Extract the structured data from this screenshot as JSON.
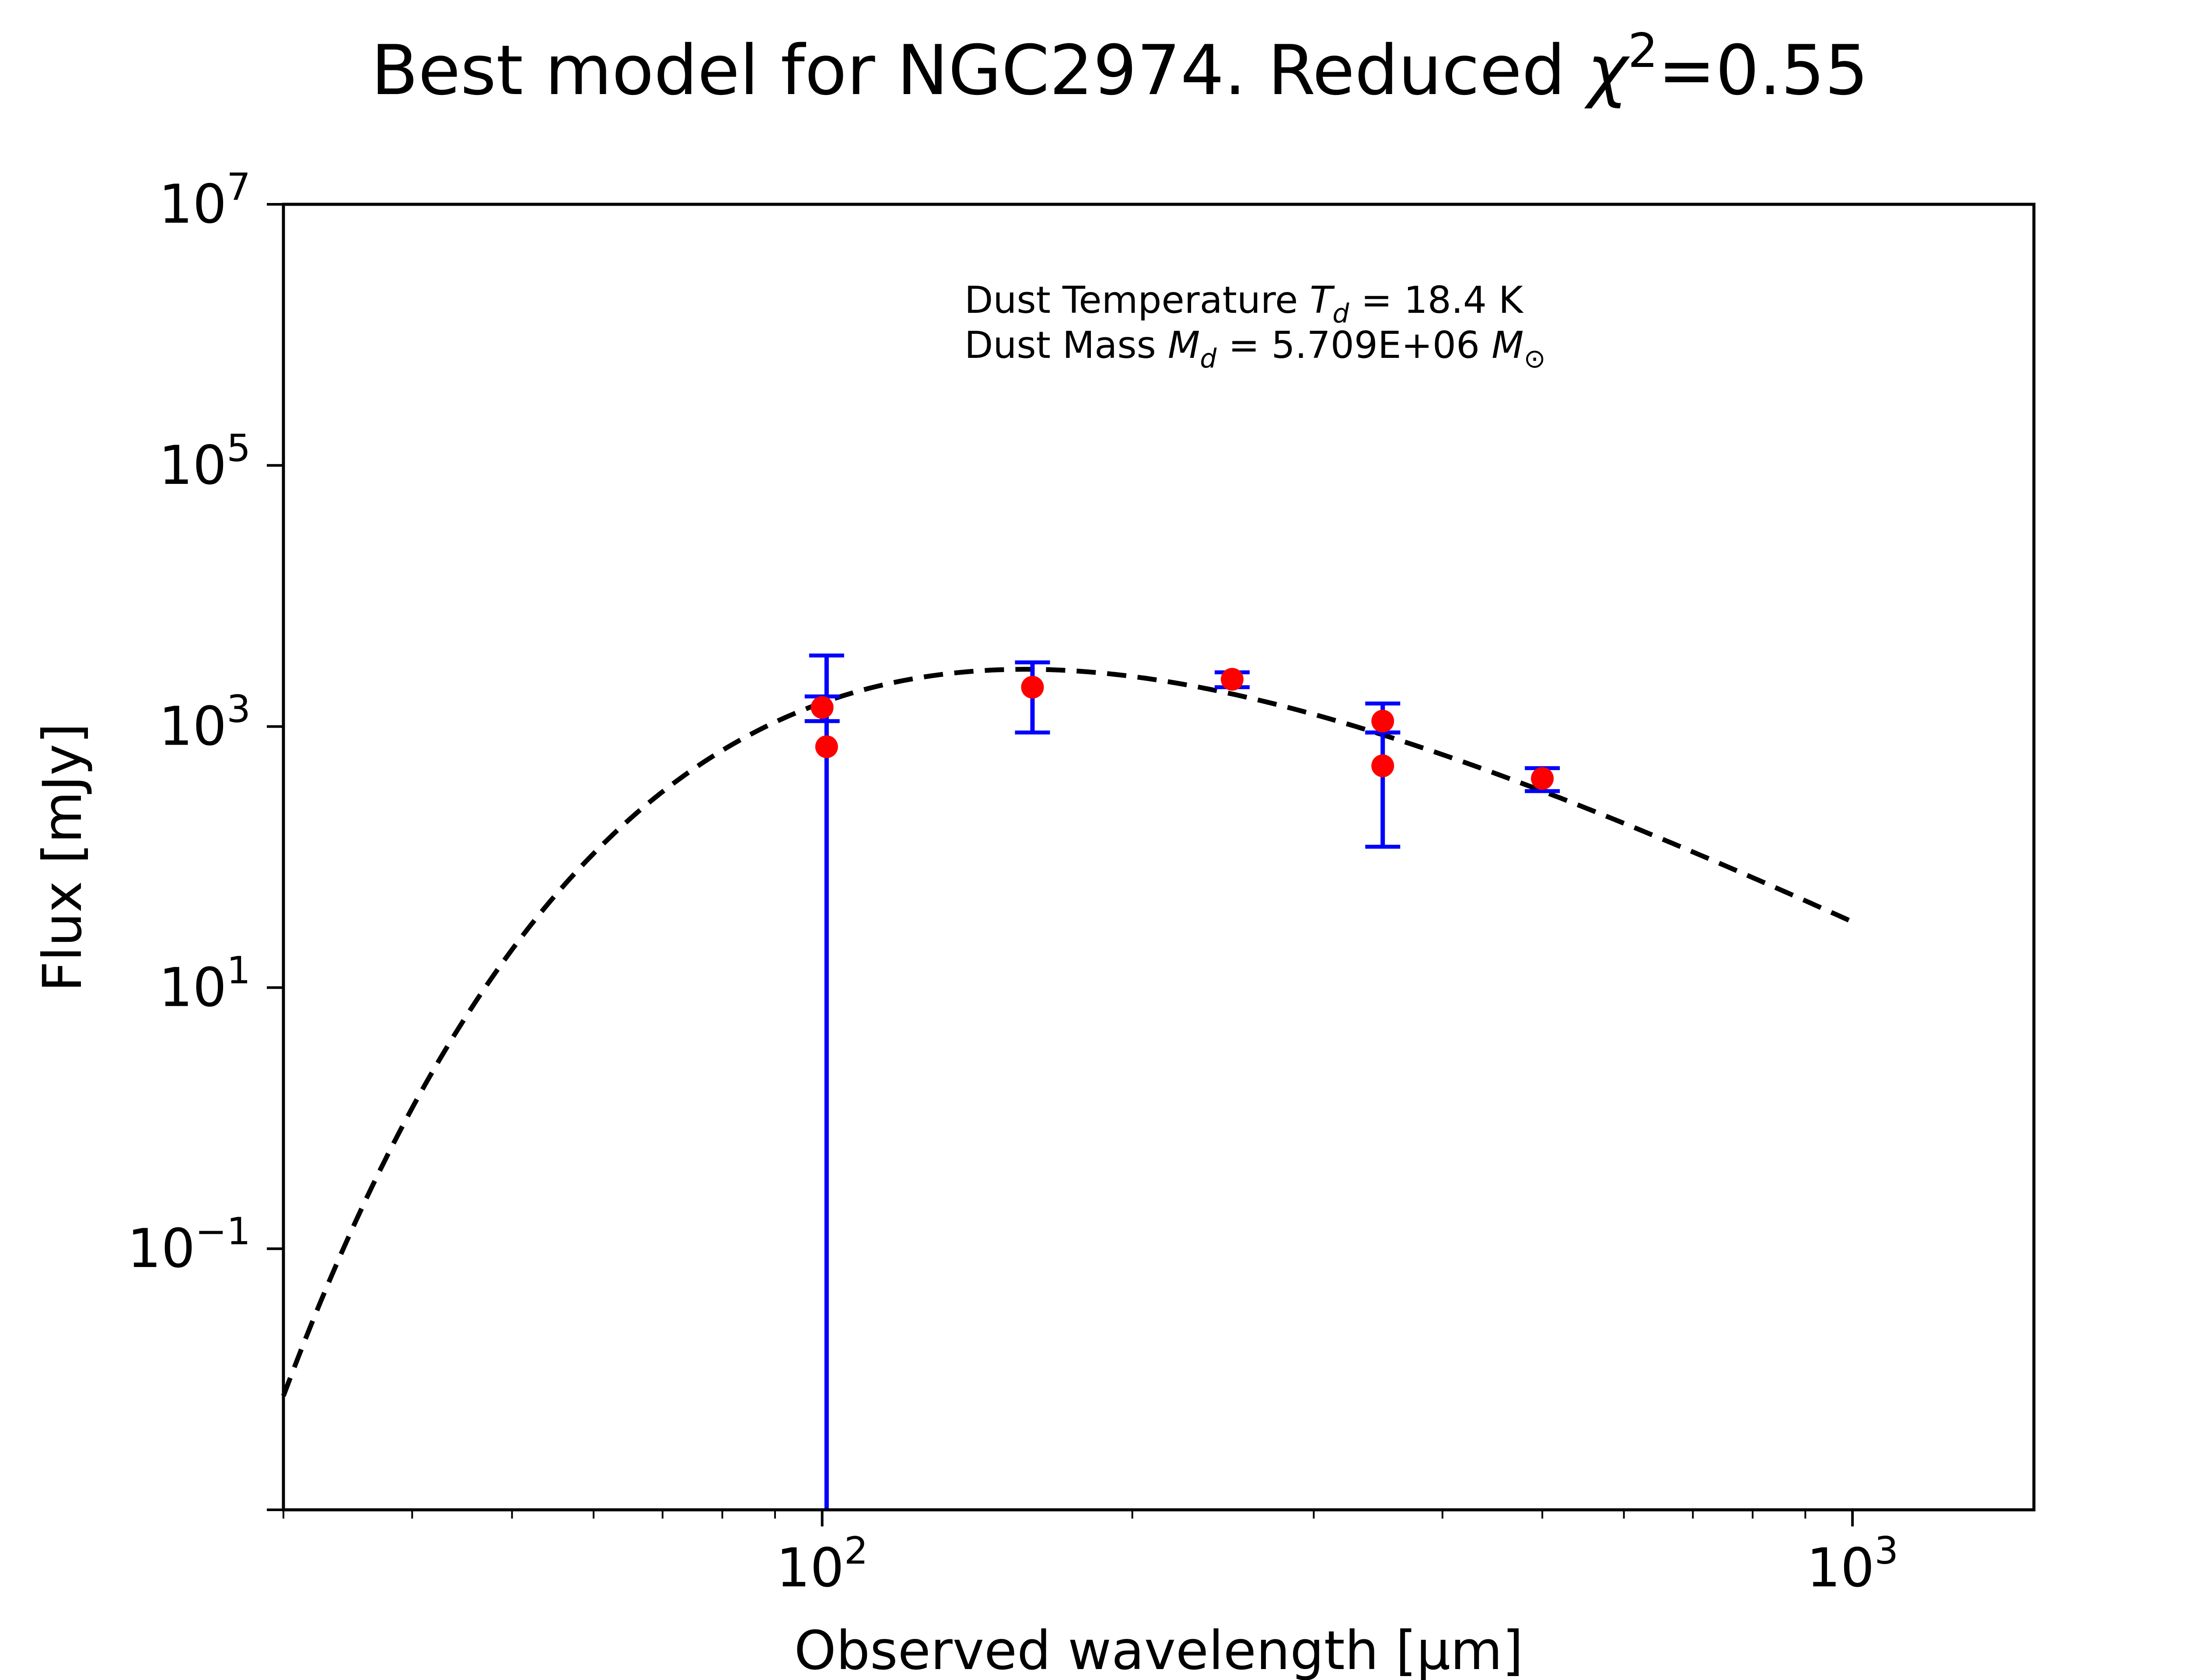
{
  "title": {
    "prefix": "Best model for NGC2974. Reduced ",
    "chi_symbol": "χ",
    "chi_exponent": "2",
    "suffix": "=0.55"
  },
  "annotations": {
    "temperature": {
      "label": "Dust Temperature ",
      "symbol": "T",
      "subscript": "d",
      "value_text": " = 18.4 K"
    },
    "mass": {
      "label": "Dust Mass ",
      "symbol": "M",
      "subscript": "d",
      "value_text": " = 5.709E+06 ",
      "unit_symbol": "M",
      "unit_subscript": "⊙"
    }
  },
  "chart_data": {
    "type": "scatter",
    "xscale": "log",
    "yscale": "log",
    "xlabel": "Observed wavelength [μm]",
    "ylabel": "Flux [mJy]",
    "xlim": [
      30,
      1500
    ],
    "ylim": [
      0.001,
      10000000
    ],
    "x_ticks": [
      {
        "value": 100,
        "base": "10",
        "exp": "2"
      },
      {
        "value": 1000,
        "base": "10",
        "exp": "3"
      }
    ],
    "y_ticks": [
      {
        "value": 10000000,
        "base": "10",
        "exp": "7"
      },
      {
        "value": 100000,
        "base": "10",
        "exp": "5"
      },
      {
        "value": 1000,
        "base": "10",
        "exp": "3"
      },
      {
        "value": 10,
        "base": "10",
        "exp": "1"
      },
      {
        "value": 0.1,
        "base": "10",
        "exp": "−1"
      },
      {
        "value": 0.001,
        "base": "",
        "exp": ""
      }
    ],
    "model": {
      "temperature_K": 18.4,
      "beta": 2,
      "x_range": [
        30,
        1000
      ],
      "reference_wavelength": 171,
      "reference_flux": 2700,
      "line_style": "dashed",
      "color": "#000000"
    },
    "observations": {
      "marker_color": "#ff0000",
      "errorbar_color": "#0000ff",
      "points": [
        {
          "x": 100,
          "y": 1400,
          "y_low": 1100,
          "y_high": 1700
        },
        {
          "x": 101,
          "y": 700,
          "y_low": 0.001,
          "y_high": 3500
        },
        {
          "x": 160,
          "y": 2000,
          "y_low": 900,
          "y_high": 3100
        },
        {
          "x": 250,
          "y": 2300,
          "y_low": 2000,
          "y_high": 2600
        },
        {
          "x": 350,
          "y": 1100,
          "y_low": 900,
          "y_high": 1500
        },
        {
          "x": 350,
          "y": 500,
          "y_low": 120,
          "y_high": 900
        },
        {
          "x": 500,
          "y": 400,
          "y_low": 320,
          "y_high": 480
        }
      ]
    }
  }
}
